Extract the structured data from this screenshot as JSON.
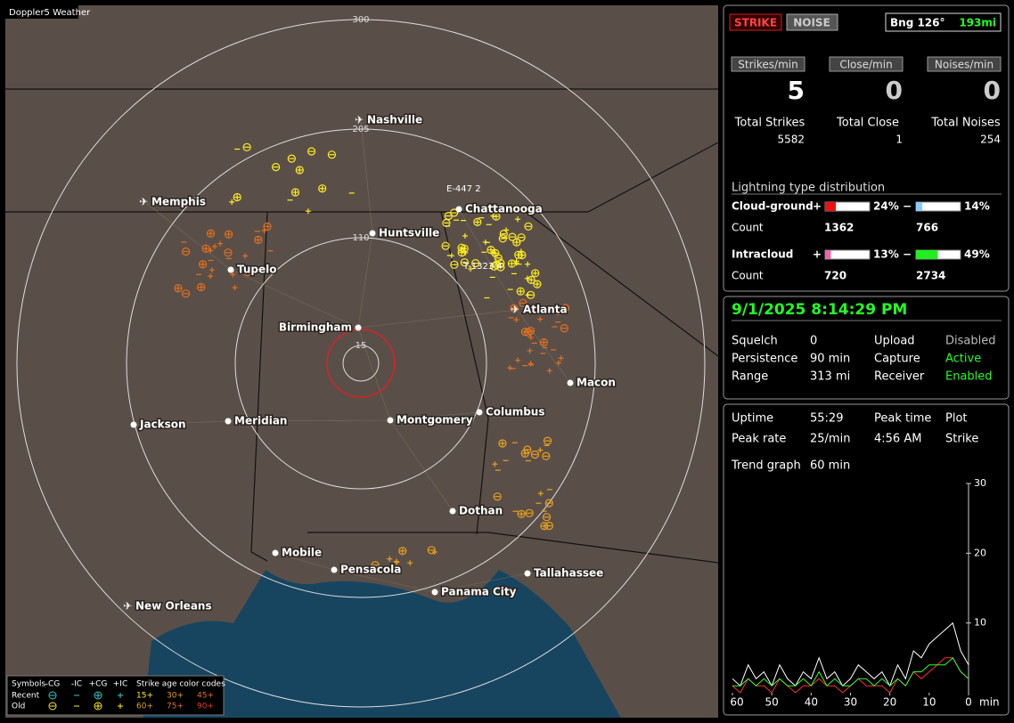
{
  "map": {
    "title": "Doppler5 Weather",
    "range_labels": [
      "300",
      "205",
      "110",
      "15"
    ],
    "cities": [
      {
        "name": "Nashville",
        "airport": true
      },
      {
        "name": "Memphis",
        "airport": true
      },
      {
        "name": "Chattanooga",
        "airport": false
      },
      {
        "name": "Huntsville",
        "airport": false
      },
      {
        "name": "Tupelo",
        "airport": false
      },
      {
        "name": "Atlanta",
        "airport": true
      },
      {
        "name": "Birmingham",
        "airport": false
      },
      {
        "name": "Macon",
        "airport": false
      },
      {
        "name": "Jackson",
        "airport": false
      },
      {
        "name": "Meridian",
        "airport": false
      },
      {
        "name": "Montgomery",
        "airport": false
      },
      {
        "name": "Columbus",
        "airport": false
      },
      {
        "name": "Dothan",
        "airport": false
      },
      {
        "name": "Mobile",
        "airport": false
      },
      {
        "name": "Pensacola",
        "airport": false
      },
      {
        "name": "Tallahassee",
        "airport": false
      },
      {
        "name": "Panama City",
        "airport": false
      },
      {
        "name": "New Orleans",
        "airport": true
      }
    ],
    "annotations": [
      "E-447  2",
      "T-1323  4"
    ],
    "legend": {
      "symbols": "Symbols",
      "columns": [
        "-CG",
        "-IC",
        "+CG",
        "+IC"
      ],
      "age_title": "Strike age color codes",
      "rows": [
        {
          "name": "Recent",
          "ages": [
            "15+",
            "30+",
            "45+"
          ]
        },
        {
          "name": "Old",
          "ages": [
            "60+",
            "75+",
            "90+"
          ]
        }
      ]
    }
  },
  "status": {
    "strike_button": "STRIKE",
    "noise_button": "NOISE",
    "bearing": "Bng 126°",
    "distance": "193mi",
    "rates": [
      {
        "label": "Strikes/min",
        "value": 5
      },
      {
        "label": "Close/min",
        "value": 0
      },
      {
        "label": "Noises/min",
        "value": 0
      }
    ],
    "totals": [
      {
        "label": "Total Strikes",
        "value": 5582
      },
      {
        "label": "Total Close",
        "value": 1
      },
      {
        "label": "Total Noises",
        "value": 254
      }
    ],
    "distribution": {
      "title": "Lightning type distribution",
      "count_label": "Count",
      "plus": "+",
      "minus": "−",
      "rows": [
        {
          "name": "Cloud-ground",
          "plus_pct": {
            "value": 24,
            "label": "24%"
          },
          "minus_pct": {
            "value": 14,
            "label": "14%"
          },
          "plus_count": 1362,
          "minus_count": 766
        },
        {
          "name": "Intracloud",
          "plus_pct": {
            "value": 13,
            "label": "13%"
          },
          "minus_pct": {
            "value": 49,
            "label": "49%"
          },
          "plus_count": 720,
          "minus_count": 2734
        }
      ]
    }
  },
  "settings": {
    "datetime": "9/1/2025 8:14:29 PM",
    "rows": [
      [
        "Squelch",
        "0",
        "Upload",
        "Disabled"
      ],
      [
        "Persistence",
        "90 min",
        "Capture",
        "Active"
      ],
      [
        "Range",
        "313 mi",
        "Receiver",
        "Enabled"
      ]
    ]
  },
  "stats": {
    "rows": [
      [
        "Uptime",
        "55:29",
        "Peak time",
        "Plot"
      ],
      [
        "Peak rate",
        "25/min",
        "4:56 AM",
        "Strike"
      ]
    ],
    "trend_label": "Trend graph",
    "trend_value": "60 min"
  },
  "trend_chart": {
    "type": "line",
    "x_unit": "min",
    "xlim": [
      60,
      0
    ],
    "xticks": [
      60,
      50,
      40,
      30,
      20,
      10,
      0
    ],
    "ylim": [
      0,
      30
    ],
    "yticks": [
      10,
      20,
      30
    ],
    "x": [
      60,
      58,
      56,
      54,
      52,
      50,
      48,
      46,
      44,
      42,
      40,
      38,
      36,
      34,
      32,
      30,
      28,
      26,
      24,
      22,
      20,
      18,
      16,
      14,
      12,
      10,
      8,
      6,
      4,
      2,
      0
    ],
    "series": [
      {
        "color": "#ffffff",
        "values": [
          2,
          1,
          4,
          2,
          3,
          1,
          4,
          2,
          1,
          3,
          2,
          5,
          2,
          3,
          1,
          2,
          4,
          3,
          2,
          3,
          1,
          4,
          2,
          6,
          5,
          7,
          8,
          9,
          10,
          6,
          4
        ]
      },
      {
        "color": "#ff3030",
        "values": [
          1,
          0,
          2,
          1,
          1,
          0,
          2,
          1,
          0,
          1,
          1,
          2,
          1,
          1,
          0,
          1,
          2,
          1,
          1,
          1,
          0,
          2,
          1,
          3,
          2,
          3,
          4,
          5,
          5,
          3,
          2
        ]
      },
      {
        "color": "#30ff30",
        "values": [
          1,
          1,
          2,
          1,
          2,
          1,
          2,
          1,
          1,
          2,
          1,
          3,
          1,
          2,
          1,
          1,
          2,
          2,
          1,
          2,
          1,
          2,
          1,
          3,
          3,
          4,
          4,
          4,
          5,
          3,
          2
        ]
      }
    ]
  }
}
